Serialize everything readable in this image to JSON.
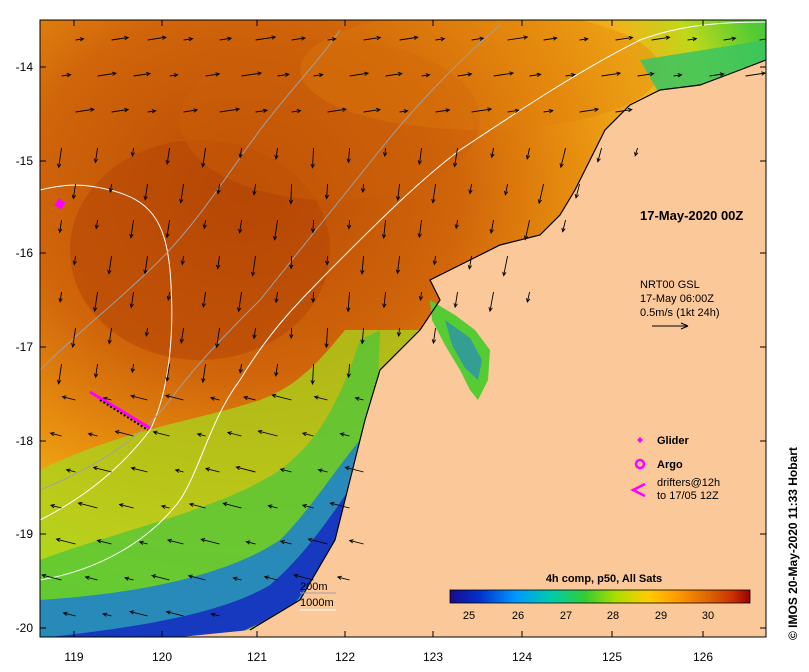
{
  "map": {
    "date_label": "17-May-2020 00Z",
    "current_info": {
      "line1": "NRT00 GSL",
      "line2": "17-May 06:00Z",
      "line3": "0.5m/s (1kt 24h)"
    },
    "legend": {
      "glider": "Glider",
      "argo": "Argo",
      "drifters_line1": "drifters@12h",
      "drifters_line2": "to 17/05 12Z",
      "glider_color": "#ff00ff",
      "argo_color": "#ff00ff",
      "drifter_color": "#ff00ff"
    },
    "depth_legend": {
      "line1": "200m",
      "line2": "1000m"
    },
    "colorbar": {
      "title": "4h comp, p50, All Sats",
      "ticks": [
        "25",
        "26",
        "27",
        "28",
        "29",
        "30"
      ],
      "min": 24.5,
      "max": 31,
      "colors": [
        "#1a0a8c",
        "#0033cc",
        "#0099ff",
        "#00ccaa",
        "#33cc33",
        "#aadd00",
        "#ffcc00",
        "#ff9900",
        "#dd6600",
        "#cc3300",
        "#990000"
      ]
    },
    "credit": "© IMOS 20-May-2020 11:33 Hobart",
    "axes": {
      "lon_ticks": [
        "119",
        "120",
        "121",
        "122",
        "123",
        "124",
        "125",
        "126"
      ],
      "lat_ticks": [
        "-14",
        "-15",
        "-16",
        "-17",
        "-18",
        "-19",
        "-20"
      ],
      "lon_range": [
        118.65,
        126.75
      ],
      "lat_range": [
        -20.1,
        -13.5
      ]
    },
    "colors": {
      "land": "#fbc89a",
      "sst_warm": "#cf6a0a",
      "sst_hot": "#b84a05",
      "sst_mid": "#f2a51a",
      "sst_cool": "#8ed41a",
      "sst_cold": "#1430c0"
    }
  }
}
